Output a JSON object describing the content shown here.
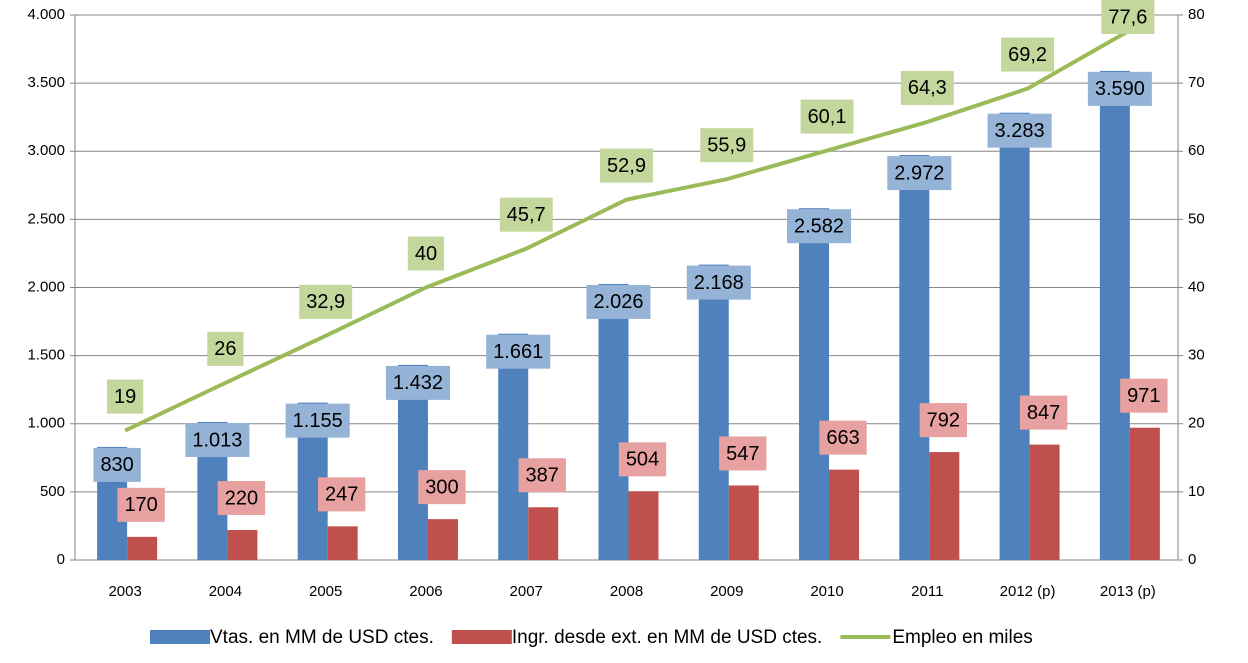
{
  "chart_data": {
    "type": "bar_line",
    "categories": [
      "2003",
      "2004",
      "2005",
      "2006",
      "2007",
      "2008",
      "2009",
      "2010",
      "2011",
      "2012 (p)",
      "2013 (p)"
    ],
    "series": [
      {
        "name": "Vtas. en MM de USD ctes.",
        "color": "#4f81bd",
        "label_color": "#95b3d7",
        "type": "bar",
        "values": [
          830,
          1013,
          1155,
          1432,
          1661,
          2026,
          2168,
          2582,
          2972,
          3283,
          3590
        ],
        "value_labels": [
          "830",
          "1.013",
          "1.155",
          "1.432",
          "1.661",
          "2.026",
          "2.168",
          "2.582",
          "2.972",
          "3.283",
          "3.590"
        ]
      },
      {
        "name": "Ingr. desde ext. en MM de USD ctes.",
        "color": "#c0504d",
        "label_color": "#e6a1a0",
        "type": "bar",
        "values": [
          170,
          220,
          247,
          300,
          387,
          504,
          547,
          663,
          792,
          847,
          971
        ],
        "value_labels": [
          "170",
          "220",
          "247",
          "300",
          "387",
          "504",
          "547",
          "663",
          "792",
          "847",
          "971"
        ]
      },
      {
        "name": "Empleo en miles",
        "color": "#9bbb59",
        "label_color": "#c3d69b",
        "type": "line",
        "axis": "y2",
        "values": [
          19,
          26,
          32.9,
          40,
          45.7,
          52.9,
          55.9,
          60.1,
          64.3,
          69.2,
          77.6
        ],
        "value_labels": [
          "19",
          "26",
          "32,9",
          "40",
          "45,7",
          "52,9",
          "55,9",
          "60,1",
          "64,3",
          "69,2",
          "77,6"
        ]
      }
    ],
    "ylim": [
      0,
      4000
    ],
    "yticks": [
      0,
      500,
      {
        "value": 1000,
        "label": "1.000"
      },
      {
        "value": 1500,
        "label": "1.500"
      },
      {
        "value": 2000,
        "label": "2.000"
      },
      {
        "value": 2500,
        "label": "2.500"
      },
      {
        "value": 3000,
        "label": "3.000"
      },
      {
        "value": 3500,
        "label": "3.500"
      },
      {
        "value": 4000,
        "label": "4.000"
      }
    ],
    "y2lim": [
      0,
      80
    ],
    "y2ticks": [
      0,
      10,
      20,
      30,
      40,
      50,
      60,
      70,
      80
    ],
    "grid": true,
    "legend": "bottom"
  }
}
